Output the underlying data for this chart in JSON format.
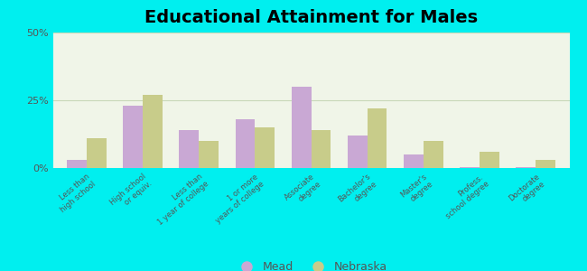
{
  "title": "Educational Attainment for Males",
  "categories": [
    "Less than\nhigh school",
    "High school\nor equiv.",
    "Less than\n1 year of college",
    "1 or more\nyears of college",
    "Associate\ndegree",
    "Bachelor's\ndegree",
    "Master's\ndegree",
    "Profess.\nschool degree",
    "Doctorate\ndegree"
  ],
  "mead_values": [
    3.0,
    23.0,
    14.0,
    18.0,
    30.0,
    12.0,
    5.0,
    0.5,
    0.5
  ],
  "nebraska_values": [
    11.0,
    27.0,
    10.0,
    15.0,
    14.0,
    22.0,
    10.0,
    6.0,
    3.0
  ],
  "mead_color": "#c9a8d4",
  "nebraska_color": "#c8cc8a",
  "background_outer": "#00efef",
  "background_plot_top": "#f0f5e8",
  "background_plot_bottom": "#d8ecc8",
  "ylim": [
    0,
    50
  ],
  "yticks": [
    0,
    25,
    50
  ],
  "ytick_labels": [
    "0%",
    "25%",
    "50%"
  ],
  "bar_width": 0.35,
  "title_fontsize": 14,
  "legend_labels": [
    "Mead",
    "Nebraska"
  ],
  "tick_label_color": "#555555",
  "grid_color": "#c8d8b8"
}
